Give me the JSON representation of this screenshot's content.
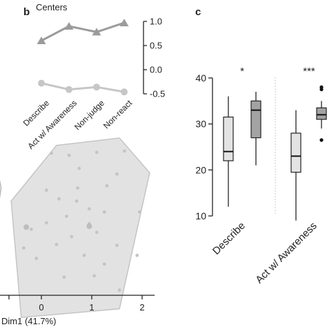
{
  "panels": {
    "b_letter": "b",
    "c_letter": "c"
  },
  "chart_data": [
    {
      "panel": "b",
      "type": "line",
      "title": "Centers",
      "categories": [
        "Describe",
        "Act w/ Awareness",
        "Non-judge",
        "Non-react"
      ],
      "ylim": [
        -0.5,
        1.0
      ],
      "yticks": [
        "1.0",
        "0.5",
        "0.0",
        "-0.5"
      ],
      "ytick_values": [
        1.0,
        0.5,
        0.0,
        -0.5
      ],
      "series": [
        {
          "values": [
            0.6,
            0.9,
            0.78,
            0.97
          ],
          "marker": "triangle",
          "color": "#9b9b9b"
        },
        {
          "values": [
            -0.28,
            -0.41,
            -0.36,
            -0.46
          ],
          "marker": "circle",
          "color": "#c6c6c6"
        }
      ]
    },
    {
      "panel": "pca",
      "type": "scatter",
      "xlabel": "Dim1 (41.7%)",
      "xticks": [
        "0",
        "1",
        "2"
      ],
      "xtick_values": [
        0,
        1,
        2
      ],
      "xlim": [
        -0.9,
        2.25
      ],
      "ylim": [
        -2.75,
        1.55
      ],
      "hull": [
        [
          0.3,
          1.48
        ],
        [
          1.55,
          1.65
        ],
        [
          2.15,
          0.85
        ],
        [
          1.55,
          -2.28
        ],
        [
          -0.4,
          -2.48
        ],
        [
          -0.6,
          0.2
        ]
      ],
      "partial_hull_left": [
        [
          -0.86,
          0.85
        ],
        [
          -0.8,
          0.5
        ],
        [
          -0.86,
          0.05
        ]
      ],
      "points": [
        {
          "x": 0.2,
          "y": 1.3
        },
        {
          "x": 0.55,
          "y": 1.25
        },
        {
          "x": 1.1,
          "y": 1.32
        },
        {
          "x": 1.65,
          "y": 1.35
        },
        {
          "x": 0.75,
          "y": 0.95
        },
        {
          "x": 1.5,
          "y": 0.82
        },
        {
          "x": 1.3,
          "y": 0.55
        },
        {
          "x": 0.1,
          "y": 0.45
        },
        {
          "x": 0.35,
          "y": 0.25
        },
        {
          "x": 0.7,
          "y": 0.2
        },
        {
          "x": 0.95,
          "y": 0.02
        },
        {
          "x": 1.25,
          "y": -0.05
        },
        {
          "x": 1.95,
          "y": -0.05
        },
        {
          "x": 0.5,
          "y": -0.15
        },
        {
          "x": 0.1,
          "y": -0.3
        },
        {
          "x": -0.2,
          "y": -0.45
        },
        {
          "x": 0.6,
          "y": -0.62
        },
        {
          "x": 1.1,
          "y": -0.52
        },
        {
          "x": 1.5,
          "y": -0.82
        },
        {
          "x": -0.35,
          "y": -0.88
        },
        {
          "x": 0.3,
          "y": -0.8
        },
        {
          "x": 0.85,
          "y": -1.05
        },
        {
          "x": 1.25,
          "y": -1.25
        },
        {
          "x": 1.9,
          "y": -1.05
        },
        {
          "x": 0.45,
          "y": -1.55
        },
        {
          "x": 1.05,
          "y": -1.52
        },
        {
          "x": 1.55,
          "y": -1.85
        },
        {
          "x": -0.1,
          "y": -1.12
        },
        {
          "x": 0.95,
          "y": -0.32
        },
        {
          "x": 0.72,
          "y": 0.5
        }
      ],
      "big_points": [
        {
          "x": 0.95,
          "y": -0.38
        },
        {
          "x": -0.3,
          "y": -0.4
        }
      ]
    },
    {
      "panel": "c",
      "type": "box",
      "ylim": [
        10,
        40
      ],
      "yticks": [
        "40",
        "30",
        "20",
        "10"
      ],
      "ytick_values": [
        40,
        30,
        20,
        10
      ],
      "categories": [
        "Describe",
        "Act w/ Awareness"
      ],
      "significance": [
        "*",
        "***"
      ],
      "boxes": [
        {
          "group": "Describe",
          "color": "#e3e3e3",
          "whisker_low": 12,
          "q1": 22,
          "median": 24,
          "q3": 31.5,
          "whisker_high": 36,
          "outliers": []
        },
        {
          "group": "Describe",
          "color": "#a3a3a3",
          "whisker_low": 21,
          "q1": 27,
          "median": 33,
          "q3": 35,
          "whisker_high": 37,
          "outliers": []
        },
        {
          "group": "Act w/ Awareness",
          "color": "#e3e3e3",
          "whisker_low": 9,
          "q1": 19.5,
          "median": 23,
          "q3": 28,
          "whisker_high": 33,
          "outliers": []
        },
        {
          "group": "Act w/ Awareness",
          "color": "#a3a3a3",
          "whisker_low": 29,
          "q1": 31,
          "median": 32,
          "q3": 33.5,
          "whisker_high": 35,
          "outliers": [
            37.5,
            26.5,
            38
          ]
        }
      ]
    }
  ]
}
